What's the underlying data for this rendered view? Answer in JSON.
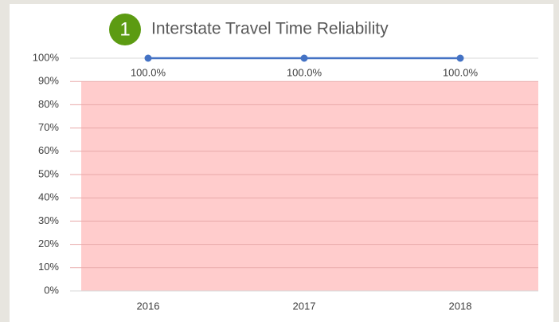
{
  "chart_data": {
    "type": "line",
    "badge": "1",
    "title": "Interstate Travel Time Reliability",
    "categories": [
      "2016",
      "2017",
      "2018"
    ],
    "series": [
      {
        "color": "#4472c4",
        "values": [
          100,
          100,
          100
        ],
        "value_labels": [
          "100.0%",
          "100.0%",
          "100.0%"
        ]
      }
    ],
    "shaded_range": [
      0,
      90
    ],
    "shaded_color": "#ffcccc",
    "ylim": [
      0,
      100
    ],
    "yticks": [
      {
        "value": 0,
        "label": "0%"
      },
      {
        "value": 10,
        "label": "10%"
      },
      {
        "value": 20,
        "label": "20%"
      },
      {
        "value": 30,
        "label": "30%"
      },
      {
        "value": 40,
        "label": "40%"
      },
      {
        "value": 50,
        "label": "50%"
      },
      {
        "value": 60,
        "label": "60%"
      },
      {
        "value": 70,
        "label": "70%"
      },
      {
        "value": 80,
        "label": "80%"
      },
      {
        "value": 90,
        "label": "90%"
      },
      {
        "value": 100,
        "label": "100%"
      }
    ],
    "grid": true
  }
}
